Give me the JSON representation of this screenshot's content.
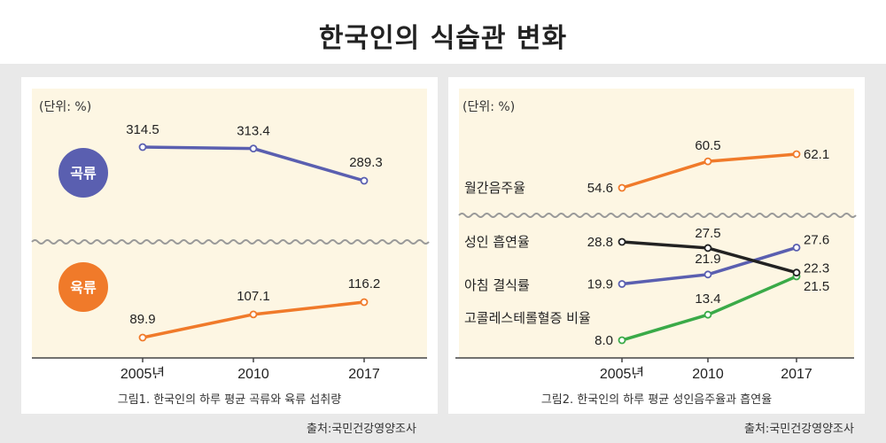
{
  "title": "한국인의 식습관 변화",
  "colors": {
    "band": "#e9e9e9",
    "plot_bg": "#fdf6e3",
    "blue": "#5a5fb0",
    "orange": "#f07a2a",
    "black": "#222222",
    "green": "#3aaa48"
  },
  "chart_data": [
    {
      "type": "line",
      "unit": "(단위: %)",
      "categories": [
        "2005년",
        "2010",
        "2017"
      ],
      "series": [
        {
          "name": "곡류",
          "values": [
            314.5,
            313.4,
            289.3
          ],
          "labels": [
            "314.5",
            "313.4",
            "289.3"
          ],
          "color": "#5a5fb0"
        },
        {
          "name": "육류",
          "values": [
            89.9,
            107.1,
            116.2
          ],
          "labels": [
            "89.9",
            "107.1",
            "116.2"
          ],
          "color": "#f07a2a"
        }
      ],
      "broken_axis": true,
      "caption": "그림1. 한국인의 하루 평균 곡류와 육류 섭취량",
      "source": "출처:국민건강영양조사"
    },
    {
      "type": "line",
      "unit": "(단위: %)",
      "categories": [
        "2005년",
        "2010",
        "2017"
      ],
      "series": [
        {
          "name": "월간음주율",
          "values": [
            54.6,
            60.5,
            62.1
          ],
          "labels": [
            "54.6",
            "60.5",
            "62.1"
          ],
          "color": "#f07a2a"
        },
        {
          "name": "성인 흡연율",
          "values": [
            28.8,
            27.5,
            22.3
          ],
          "labels": [
            "28.8",
            "27.5",
            "22.3"
          ],
          "color": "#222222"
        },
        {
          "name": "아침 결식률",
          "values": [
            19.9,
            21.9,
            27.6
          ],
          "labels": [
            "19.9",
            "21.9",
            "27.6"
          ],
          "color": "#5a5fb0"
        },
        {
          "name": "고콜레스테롤혈증 비율",
          "values": [
            8.0,
            13.4,
            21.5
          ],
          "labels": [
            "8.0",
            "13.4",
            "21.5"
          ],
          "color": "#3aaa48"
        }
      ],
      "broken_axis": true,
      "caption": "그림2. 한국인의 하루 평균 성인음주율과 흡연율",
      "source": "출처:국민건강영양조사"
    }
  ]
}
